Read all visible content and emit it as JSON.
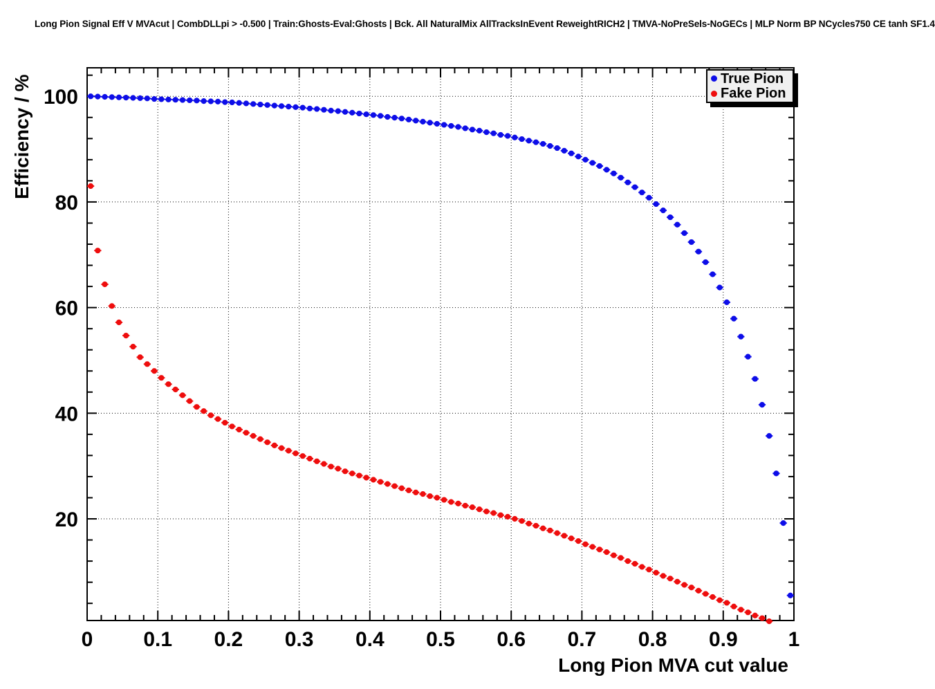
{
  "header": {
    "title": "Long Pion Signal Eff V MVAcut | CombDLLpi > -0.500 | Train:Ghosts-Eval:Ghosts | Bck. All NaturalMix AllTracksInEvent ReweightRICH2 | TMVA-NoPreSels-NoGECs | MLP Norm BP NCycles750 CE tanh SF1.4"
  },
  "chart_data": {
    "type": "scatter",
    "title": "Long Pion Signal Eff V MVAcut | CombDLLpi > -0.500 | Train:Ghosts-Eval:Ghosts | Bck. All NaturalMix AllTracksInEvent ReweightRICH2 | TMVA-NoPreSels-NoGECs | MLP Norm BP NCycles750 CE tanh SF1.4",
    "xlabel": "Long Pion MVA cut value",
    "ylabel": "Efficiency / %",
    "xlim": [
      0,
      1
    ],
    "ylim": [
      0.75,
      105.4
    ],
    "grid": true,
    "x_ticks": [
      0,
      0.1,
      0.2,
      0.3,
      0.4,
      0.5,
      0.6,
      0.7,
      0.8,
      0.9,
      1
    ],
    "x_tick_labels": [
      "0",
      "0.1",
      "0.2",
      "0.3",
      "0.4",
      "0.5",
      "0.6",
      "0.7",
      "0.8",
      "0.9",
      "1"
    ],
    "y_ticks": [
      20,
      40,
      60,
      80,
      100
    ],
    "y_tick_labels": [
      "20",
      "40",
      "60",
      "80",
      "100"
    ],
    "x_minor_step": 0.02,
    "y_minor_step": 4,
    "legend": {
      "position": "top-right",
      "entries": [
        {
          "label": "True Pion",
          "color": "#0d0de8"
        },
        {
          "label": "Fake Pion",
          "color": "#ee0d0d"
        }
      ]
    },
    "series": [
      {
        "name": "True Pion",
        "color": "#0d0de8",
        "x_error_halfwidth": 0.005,
        "x": [
          0.005,
          0.015,
          0.025,
          0.035,
          0.045,
          0.055,
          0.065,
          0.075,
          0.085,
          0.095,
          0.105,
          0.115,
          0.125,
          0.135,
          0.145,
          0.155,
          0.165,
          0.175,
          0.185,
          0.195,
          0.205,
          0.215,
          0.225,
          0.235,
          0.245,
          0.255,
          0.265,
          0.275,
          0.285,
          0.295,
          0.305,
          0.315,
          0.325,
          0.335,
          0.345,
          0.355,
          0.365,
          0.375,
          0.385,
          0.395,
          0.405,
          0.415,
          0.425,
          0.435,
          0.445,
          0.455,
          0.465,
          0.475,
          0.485,
          0.495,
          0.505,
          0.515,
          0.525,
          0.535,
          0.545,
          0.555,
          0.565,
          0.575,
          0.585,
          0.595,
          0.605,
          0.615,
          0.625,
          0.635,
          0.645,
          0.655,
          0.665,
          0.675,
          0.685,
          0.695,
          0.705,
          0.715,
          0.725,
          0.735,
          0.745,
          0.755,
          0.765,
          0.775,
          0.785,
          0.795,
          0.805,
          0.815,
          0.825,
          0.835,
          0.845,
          0.855,
          0.865,
          0.875,
          0.885,
          0.895,
          0.905,
          0.915,
          0.925,
          0.935,
          0.945,
          0.955,
          0.965,
          0.975,
          0.985,
          0.995
        ],
        "y": [
          100.0,
          99.95,
          99.9,
          99.85,
          99.8,
          99.75,
          99.7,
          99.65,
          99.6,
          99.5,
          99.45,
          99.4,
          99.35,
          99.3,
          99.25,
          99.2,
          99.1,
          99.05,
          99.0,
          98.9,
          98.85,
          98.75,
          98.65,
          98.55,
          98.45,
          98.35,
          98.25,
          98.15,
          98.05,
          97.95,
          97.85,
          97.7,
          97.6,
          97.45,
          97.3,
          97.2,
          97.05,
          96.9,
          96.75,
          96.6,
          96.45,
          96.3,
          96.1,
          95.95,
          95.8,
          95.6,
          95.4,
          95.2,
          95.0,
          94.8,
          94.6,
          94.4,
          94.2,
          93.95,
          93.7,
          93.5,
          93.2,
          93.0,
          92.7,
          92.5,
          92.2,
          91.9,
          91.6,
          91.3,
          91.0,
          90.6,
          90.2,
          89.7,
          89.2,
          88.6,
          88.0,
          87.4,
          86.8,
          86.1,
          85.4,
          84.6,
          83.7,
          82.8,
          81.8,
          80.8,
          79.6,
          78.4,
          77.1,
          75.7,
          74.1,
          72.4,
          70.6,
          68.6,
          66.3,
          63.8,
          61.0,
          57.9,
          54.5,
          50.7,
          46.5,
          41.6,
          35.7,
          28.6,
          19.2,
          5.5
        ]
      },
      {
        "name": "Fake Pion",
        "color": "#ee0d0d",
        "x_error_halfwidth": 0.005,
        "x": [
          0.005,
          0.015,
          0.025,
          0.035,
          0.045,
          0.055,
          0.065,
          0.075,
          0.085,
          0.095,
          0.105,
          0.115,
          0.125,
          0.135,
          0.145,
          0.155,
          0.165,
          0.175,
          0.185,
          0.195,
          0.205,
          0.215,
          0.225,
          0.235,
          0.245,
          0.255,
          0.265,
          0.275,
          0.285,
          0.295,
          0.305,
          0.315,
          0.325,
          0.335,
          0.345,
          0.355,
          0.365,
          0.375,
          0.385,
          0.395,
          0.405,
          0.415,
          0.425,
          0.435,
          0.445,
          0.455,
          0.465,
          0.475,
          0.485,
          0.495,
          0.505,
          0.515,
          0.525,
          0.535,
          0.545,
          0.555,
          0.565,
          0.575,
          0.585,
          0.595,
          0.605,
          0.615,
          0.625,
          0.635,
          0.645,
          0.655,
          0.665,
          0.675,
          0.685,
          0.695,
          0.705,
          0.715,
          0.725,
          0.735,
          0.745,
          0.755,
          0.765,
          0.775,
          0.785,
          0.795,
          0.805,
          0.815,
          0.825,
          0.835,
          0.845,
          0.855,
          0.865,
          0.875,
          0.885,
          0.895,
          0.905,
          0.915,
          0.925,
          0.935,
          0.945,
          0.955,
          0.965
        ],
        "y": [
          83.0,
          70.8,
          64.4,
          60.3,
          57.2,
          54.7,
          52.6,
          50.6,
          49.3,
          48.0,
          46.7,
          45.5,
          44.5,
          43.4,
          42.3,
          41.2,
          40.4,
          39.6,
          38.9,
          38.2,
          37.5,
          36.9,
          36.3,
          35.7,
          35.1,
          34.5,
          33.9,
          33.4,
          32.9,
          32.4,
          31.9,
          31.4,
          30.9,
          30.4,
          29.9,
          29.5,
          29.0,
          28.6,
          28.2,
          27.8,
          27.4,
          27.0,
          26.6,
          26.2,
          25.8,
          25.4,
          25.0,
          24.7,
          24.3,
          24.0,
          23.6,
          23.2,
          22.9,
          22.5,
          22.2,
          21.8,
          21.4,
          21.1,
          20.7,
          20.4,
          20.0,
          19.6,
          19.1,
          18.7,
          18.2,
          17.8,
          17.3,
          16.8,
          16.3,
          15.8,
          15.2,
          14.7,
          14.2,
          13.7,
          13.1,
          12.6,
          12.0,
          11.5,
          10.9,
          10.4,
          9.8,
          9.2,
          8.7,
          8.1,
          7.5,
          7.0,
          6.4,
          5.8,
          5.2,
          4.6,
          4.1,
          3.4,
          2.8,
          2.3,
          1.7,
          1.2,
          0.6
        ]
      }
    ]
  }
}
